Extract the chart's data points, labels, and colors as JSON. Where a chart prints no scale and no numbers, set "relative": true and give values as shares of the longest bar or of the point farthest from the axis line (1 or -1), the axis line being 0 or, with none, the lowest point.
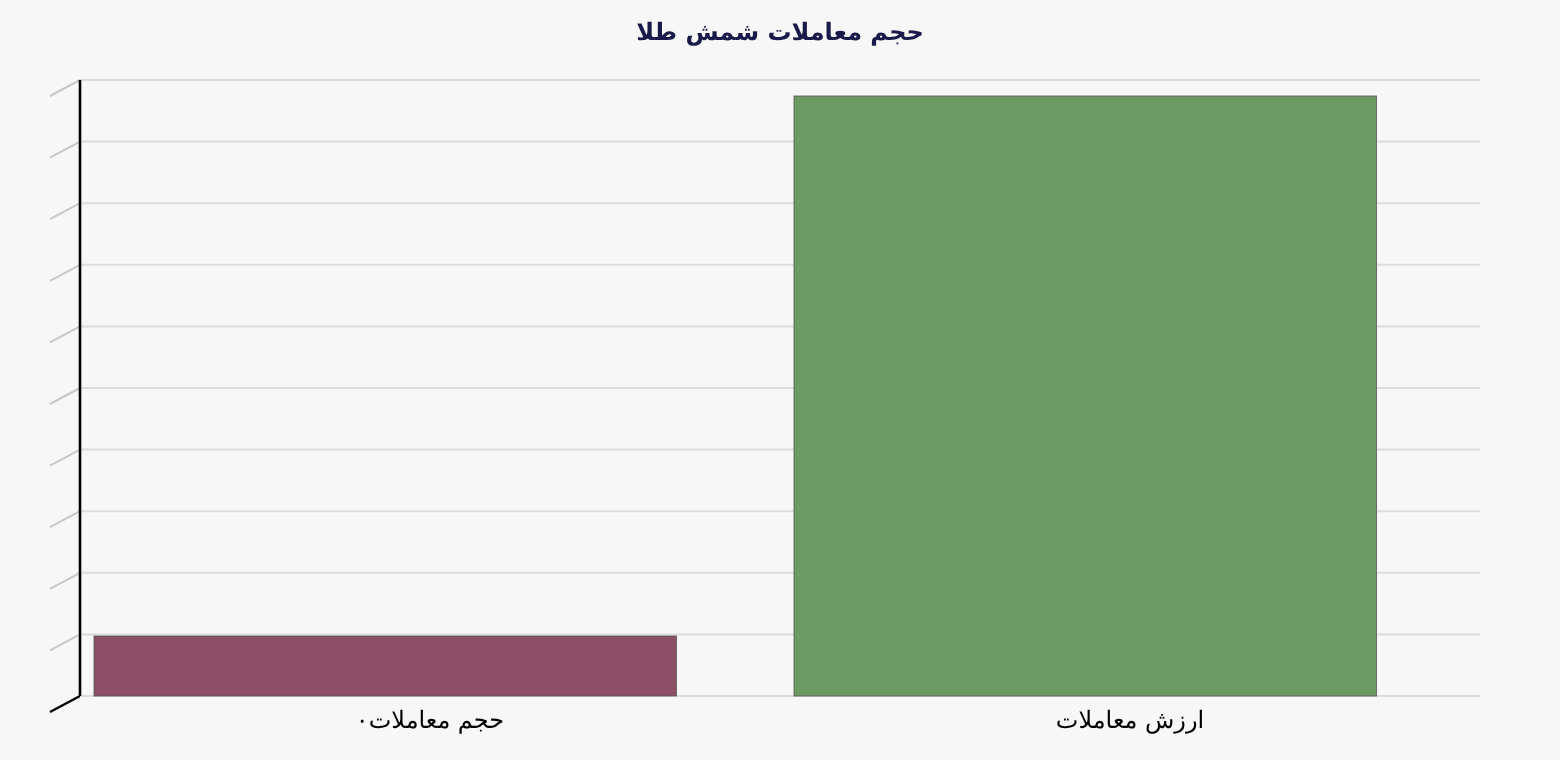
{
  "chart_data": {
    "type": "bar",
    "title": "حجم معاملات شمش طلا",
    "categories": [
      "حجم معاملات۰",
      "ارزش معاملات"
    ],
    "values": [
      0.1,
      1
    ],
    "colors": [
      "#8c4f66",
      "#6b9a62"
    ],
    "relative": true,
    "grid": "y",
    "tick_labels": "x"
  }
}
